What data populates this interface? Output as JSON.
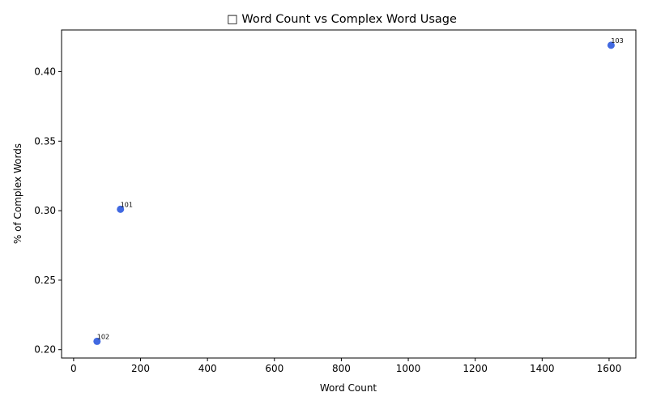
{
  "chart_data": {
    "type": "scatter",
    "title": "□ Word Count vs Complex Word Usage",
    "xlabel": "Word Count",
    "ylabel": "% of Complex Words",
    "xlim": [
      -36,
      1680
    ],
    "ylim": [
      0.194,
      0.43
    ],
    "xticks": [
      0,
      200,
      400,
      600,
      800,
      1000,
      1200,
      1400,
      1600
    ],
    "yticks": [
      0.2,
      0.25,
      0.3,
      0.35,
      0.4
    ],
    "grid": false,
    "marker_color": "#4169e1",
    "points": [
      {
        "label": "101",
        "x": 140,
        "y": 0.301
      },
      {
        "label": "102",
        "x": 70,
        "y": 0.206
      },
      {
        "label": "103",
        "x": 1606,
        "y": 0.419
      }
    ]
  }
}
